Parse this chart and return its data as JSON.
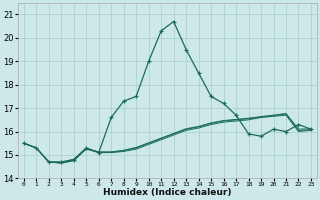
{
  "xlabel": "Humidex (Indice chaleur)",
  "x": [
    0,
    1,
    2,
    3,
    4,
    5,
    6,
    7,
    8,
    9,
    10,
    11,
    12,
    13,
    14,
    15,
    16,
    17,
    18,
    19,
    20,
    21,
    22,
    23
  ],
  "line_main": [
    15.5,
    15.3,
    14.7,
    14.7,
    14.8,
    15.3,
    15.1,
    16.6,
    17.3,
    17.5,
    19.0,
    20.3,
    20.7,
    19.5,
    18.5,
    17.5,
    17.2,
    16.7,
    15.9,
    15.8,
    16.1,
    16.0,
    16.3,
    16.1
  ],
  "line2": [
    15.5,
    15.3,
    14.7,
    14.65,
    14.75,
    15.25,
    15.1,
    15.1,
    15.15,
    15.25,
    15.45,
    15.65,
    15.85,
    16.05,
    16.15,
    16.3,
    16.4,
    16.45,
    16.5,
    16.6,
    16.65,
    16.7,
    16.0,
    16.05
  ],
  "line3": [
    15.5,
    15.3,
    14.7,
    14.65,
    14.78,
    15.27,
    15.12,
    15.12,
    15.18,
    15.3,
    15.5,
    15.7,
    15.9,
    16.1,
    16.2,
    16.35,
    16.45,
    16.5,
    16.55,
    16.62,
    16.68,
    16.75,
    16.05,
    16.08
  ],
  "line4": [
    15.5,
    15.3,
    14.7,
    14.68,
    14.82,
    15.28,
    15.13,
    15.13,
    15.2,
    15.32,
    15.52,
    15.72,
    15.92,
    16.12,
    16.22,
    16.37,
    16.47,
    16.52,
    16.57,
    16.64,
    16.7,
    16.77,
    16.1,
    16.12
  ],
  "bg_color": "#cde8e8",
  "grid_color": "#aacccc",
  "line_color": "#1a6b5a",
  "ylim": [
    14.0,
    21.5
  ],
  "xlim": [
    -0.5,
    23.5
  ],
  "yticks": [
    14,
    15,
    16,
    17,
    18,
    19,
    20,
    21
  ]
}
